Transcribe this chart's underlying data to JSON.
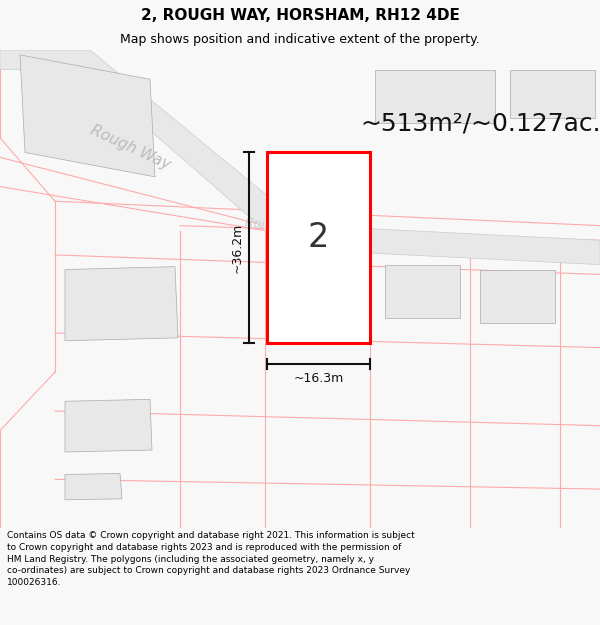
{
  "title": "2, ROUGH WAY, HORSHAM, RH12 4DE",
  "subtitle": "Map shows position and indicative extent of the property.",
  "area_text": "~513m²/~0.127ac.",
  "dim_width": "~16.3m",
  "dim_height": "~36.2m",
  "plot_number": "2",
  "road_label_main": "Rough Way",
  "road_label_small": "Rough Way",
  "footer": "Contains OS data © Crown copyright and database right 2021. This information is subject to Crown copyright and database rights 2023 and is reproduced with the permission of HM Land Registry. The polygons (including the associated geometry, namely x, y co-ordinates) are subject to Crown copyright and database rights 2023 Ordnance Survey 100026316.",
  "bg_color": "#f8f8f8",
  "map_bg": "#ffffff",
  "plot_color": "#ff0000",
  "plot_fill": "#ffffff",
  "building_fill": "#e8e8e8",
  "building_edge": "#aaaaaa",
  "lot_line_color": "#ffaaaa",
  "road_fill": "#e8e8e8",
  "road_edge": "#cccccc",
  "road_text_color": "#bbbbbb",
  "dim_color": "#111111",
  "title_fontsize": 11,
  "subtitle_fontsize": 9,
  "area_fontsize": 18,
  "plot_num_fontsize": 24,
  "dim_fontsize": 9,
  "road_fontsize_main": 11,
  "road_fontsize_small": 9,
  "footer_fontsize": 6.5
}
